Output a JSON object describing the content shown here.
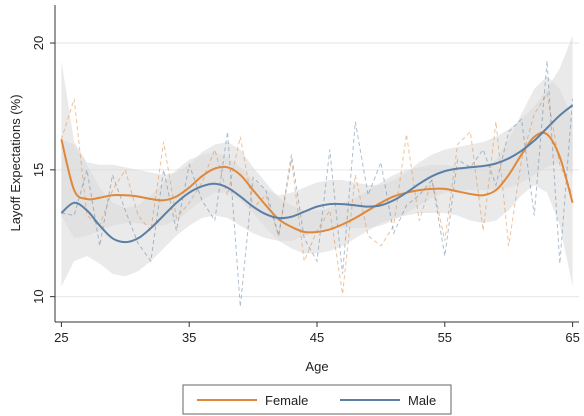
{
  "chart_data": {
    "type": "line",
    "title": "",
    "xlabel": "Age",
    "ylabel": "Layoff Expectations (%)",
    "xlim": [
      24.5,
      65.5
    ],
    "ylim": [
      9,
      21.5
    ],
    "xticks": [
      25,
      35,
      45,
      55,
      65
    ],
    "yticks": [
      10,
      15,
      20
    ],
    "grid": "horizontal",
    "legend_position": "bottom",
    "colors": {
      "female": "#e0883a",
      "male": "#5b7fa6",
      "band": "#d9d9d9"
    },
    "series": [
      {
        "name": "Female",
        "color": "#e0883a",
        "x": [
          25,
          26,
          27,
          28,
          29,
          30,
          31,
          32,
          33,
          34,
          35,
          36,
          37,
          38,
          39,
          40,
          41,
          42,
          43,
          44,
          45,
          46,
          47,
          48,
          49,
          50,
          51,
          52,
          53,
          54,
          55,
          56,
          57,
          58,
          59,
          60,
          61,
          62,
          63,
          64,
          65
        ],
        "smoothed": [
          16.2,
          14.2,
          13.85,
          13.9,
          14.0,
          14.0,
          13.95,
          13.85,
          13.8,
          13.95,
          14.3,
          14.75,
          15.05,
          15.1,
          14.8,
          14.2,
          13.6,
          13.05,
          12.75,
          12.55,
          12.55,
          12.65,
          12.85,
          13.1,
          13.4,
          13.7,
          13.95,
          14.1,
          14.2,
          14.25,
          14.25,
          14.15,
          14.05,
          14.0,
          14.2,
          14.8,
          15.6,
          16.3,
          16.4,
          15.5,
          13.7
        ],
        "raw": [
          16.2,
          17.8,
          13.2,
          12.8,
          14.2,
          15.0,
          13.2,
          12.6,
          16.1,
          13.1,
          13.7,
          14.5,
          15.8,
          14.0,
          16.3,
          13.5,
          14.0,
          12.4,
          15.4,
          11.4,
          12.6,
          13.4,
          10.1,
          14.8,
          12.4,
          12.0,
          12.8,
          16.4,
          13.0,
          14.6,
          12.2,
          16.0,
          16.5,
          12.6,
          16.9,
          12.0,
          15.4,
          17.2,
          18.0,
          15.2,
          14.0
        ],
        "ci_lower": [
          13.2,
          12.3,
          12.4,
          12.6,
          12.8,
          12.9,
          12.9,
          12.8,
          12.8,
          13.0,
          13.4,
          13.8,
          14.1,
          14.1,
          13.8,
          13.3,
          12.7,
          12.2,
          11.9,
          11.7,
          11.7,
          11.8,
          12.0,
          12.3,
          12.6,
          12.9,
          13.1,
          13.2,
          13.3,
          13.3,
          13.3,
          13.2,
          13.0,
          12.9,
          13.0,
          13.4,
          14.0,
          14.4,
          14.1,
          12.8,
          10.4
        ],
        "ci_upper": [
          19.3,
          16.1,
          15.3,
          15.2,
          15.2,
          15.1,
          15.0,
          14.9,
          14.8,
          14.9,
          15.2,
          15.7,
          16.0,
          16.1,
          15.8,
          15.1,
          14.5,
          13.9,
          13.6,
          13.4,
          13.4,
          13.5,
          13.7,
          13.9,
          14.2,
          14.5,
          14.8,
          15.0,
          15.1,
          15.2,
          15.2,
          15.1,
          15.1,
          15.1,
          15.4,
          16.2,
          17.2,
          18.2,
          18.7,
          18.2,
          17.0
        ]
      },
      {
        "name": "Male",
        "color": "#5b7fa6",
        "x": [
          25,
          26,
          27,
          28,
          29,
          30,
          31,
          32,
          33,
          34,
          35,
          36,
          37,
          38,
          39,
          40,
          41,
          42,
          43,
          44,
          45,
          46,
          47,
          48,
          49,
          50,
          51,
          52,
          53,
          54,
          55,
          56,
          57,
          58,
          59,
          60,
          61,
          62,
          63,
          64,
          65
        ],
        "smoothed": [
          13.3,
          13.7,
          13.4,
          12.8,
          12.3,
          12.15,
          12.3,
          12.7,
          13.2,
          13.7,
          14.1,
          14.35,
          14.45,
          14.3,
          13.95,
          13.55,
          13.25,
          13.1,
          13.15,
          13.35,
          13.55,
          13.65,
          13.65,
          13.6,
          13.55,
          13.6,
          13.8,
          14.1,
          14.45,
          14.75,
          14.95,
          15.05,
          15.1,
          15.15,
          15.25,
          15.45,
          15.75,
          16.15,
          16.65,
          17.15,
          17.55
        ],
        "raw": [
          13.3,
          13.2,
          15.0,
          12.0,
          14.8,
          13.4,
          12.1,
          11.4,
          15.0,
          12.6,
          15.2,
          13.8,
          13.0,
          16.5,
          9.6,
          14.7,
          14.2,
          12.4,
          15.6,
          12.3,
          11.4,
          15.8,
          10.9,
          16.9,
          14.0,
          15.3,
          12.5,
          13.6,
          14.0,
          14.6,
          11.6,
          15.4,
          15.1,
          15.8,
          14.4,
          16.5,
          17.0,
          13.2,
          19.3,
          11.3,
          17.8
        ],
        "ci_lower": [
          10.4,
          11.4,
          11.6,
          11.3,
          10.9,
          10.8,
          11.0,
          11.4,
          11.9,
          12.4,
          12.8,
          13.1,
          13.2,
          13.1,
          12.8,
          12.5,
          12.3,
          12.2,
          12.2,
          12.4,
          12.6,
          12.7,
          12.7,
          12.7,
          12.7,
          12.8,
          13.0,
          13.3,
          13.6,
          13.9,
          14.1,
          14.2,
          14.2,
          14.2,
          14.2,
          14.3,
          14.5,
          14.8,
          15.1,
          15.3,
          14.8
        ],
        "ci_upper": [
          16.2,
          16.0,
          15.2,
          14.3,
          13.7,
          13.5,
          13.6,
          14.0,
          14.5,
          15.0,
          15.4,
          15.6,
          15.7,
          15.5,
          15.1,
          14.6,
          14.2,
          14.0,
          14.1,
          14.3,
          14.5,
          14.6,
          14.6,
          14.5,
          14.4,
          14.4,
          14.6,
          14.9,
          15.3,
          15.6,
          15.8,
          15.9,
          16.0,
          16.1,
          16.3,
          16.6,
          17.0,
          17.5,
          18.2,
          19.0,
          20.3
        ]
      }
    ]
  }
}
